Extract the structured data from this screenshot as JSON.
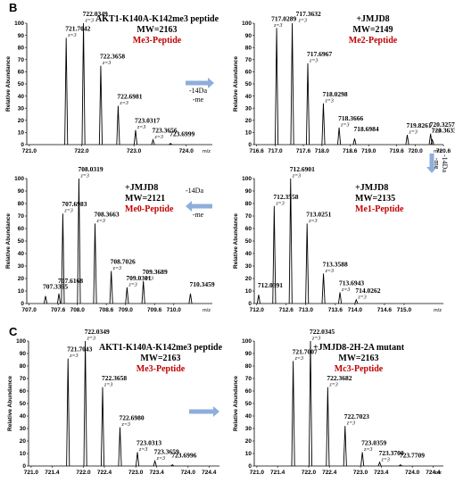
{
  "panel_letters": [
    "B",
    "C"
  ],
  "colors": {
    "arrow": "#8eaedb",
    "peptide_state": "#c00000",
    "trace": "#000000"
  },
  "arrows": [
    {
      "id": "a1",
      "direction": "right",
      "label_lines": [
        "-14Da",
        "-me"
      ]
    },
    {
      "id": "a2",
      "direction": "down",
      "label_lines": [
        "-14Da",
        "-me"
      ]
    },
    {
      "id": "a3",
      "direction": "left",
      "label_lines": [
        "-14Da",
        "-me"
      ]
    },
    {
      "id": "a4",
      "direction": "right",
      "label_lines": []
    }
  ],
  "chart_data": [
    {
      "id": "B1",
      "type": "line",
      "ylabel": "Relative Abundance",
      "xunit": "m/z",
      "xlim": [
        720.95,
        724.5
      ],
      "ylim": [
        0,
        100
      ],
      "xticks": [
        "721.0",
        "722.0",
        "723.0",
        "724.0"
      ],
      "xtick_values": [
        721.0,
        722.0,
        723.0,
        724.0
      ],
      "yticks": [
        "0",
        "10",
        "20",
        "30",
        "40",
        "50",
        "60",
        "70",
        "80",
        "90",
        "100"
      ],
      "info": [
        "AKT1-K140A-K142me3 peptide",
        "MW=2163"
      ],
      "state": "Me3-Peptide",
      "peaks": [
        {
          "x": 721.7042,
          "y": 88,
          "label": "721.7042",
          "z": "z=3"
        },
        {
          "x": 722.0349,
          "y": 100,
          "label": "722.0349",
          "z": "z=3"
        },
        {
          "x": 722.3658,
          "y": 65,
          "label": "722.3658",
          "z": "z=3"
        },
        {
          "x": 722.6981,
          "y": 32,
          "label": "722.6981",
          "z": "z=3"
        },
        {
          "x": 723.0317,
          "y": 12,
          "label": "723.0317",
          "z": "z=3"
        },
        {
          "x": 723.3656,
          "y": 4,
          "label": "723.3656",
          "z": "z=3"
        },
        {
          "x": 723.6999,
          "y": 1,
          "label": "723.6999",
          "z": ""
        }
      ]
    },
    {
      "id": "B2",
      "type": "line",
      "ylabel": "Relative Abundance",
      "xunit": "m/z",
      "xlim": [
        716.55,
        720.6
      ],
      "ylim": [
        0,
        100
      ],
      "xticks": [
        "716.6",
        "717.0",
        "717.6",
        "718.0",
        "718.6",
        "719.0",
        "719.6",
        "720.0",
        "720.6"
      ],
      "xtick_values": [
        716.6,
        717.0,
        717.6,
        718.0,
        718.6,
        719.0,
        719.6,
        720.0,
        720.6
      ],
      "yticks": [
        "0",
        "10",
        "20",
        "30",
        "40",
        "50",
        "60",
        "70",
        "80",
        "90",
        "100"
      ],
      "info": [
        "+JMJD8",
        "MW=2149"
      ],
      "state": "Me2-Peptide",
      "peaks": [
        {
          "x": 717.0289,
          "y": 96,
          "label": "717.0289",
          "z": "z=3"
        },
        {
          "x": 717.3632,
          "y": 100,
          "label": "717.3632",
          "z": "z=3"
        },
        {
          "x": 717.6967,
          "y": 67,
          "label": "717.6967",
          "z": "z=3"
        },
        {
          "x": 718.0298,
          "y": 34,
          "label": "718.0298",
          "z": "z=3"
        },
        {
          "x": 718.3666,
          "y": 14,
          "label": "718.3666",
          "z": "z=3"
        },
        {
          "x": 718.6984,
          "y": 5,
          "label": "718.6984",
          "z": ""
        },
        {
          "x": 719.8261,
          "y": 8,
          "label": "719.8261",
          "z": "z=3"
        },
        {
          "x": 720.3257,
          "y": 9,
          "label": "720.3257",
          "z": "z=3"
        },
        {
          "x": 720.3633,
          "y": 4,
          "label": "720.3633",
          "z": ""
        }
      ]
    },
    {
      "id": "B3",
      "type": "line",
      "ylabel": "Relative Abundance",
      "xunit": "m/z",
      "xlim": [
        706.95,
        710.8
      ],
      "ylim": [
        0,
        100
      ],
      "xticks": [
        "707.0",
        "707.6",
        "708.0",
        "708.6",
        "709.0",
        "709.6",
        "710.0"
      ],
      "xtick_values": [
        707.0,
        707.6,
        708.0,
        708.6,
        709.0,
        709.6,
        710.0
      ],
      "yticks": [
        "0",
        "10",
        "20",
        "30",
        "40",
        "50",
        "60",
        "70",
        "80",
        "90",
        "100"
      ],
      "info": [
        "+JMJD8",
        "MW=2121"
      ],
      "state": "Me0-Peptide",
      "peaks": [
        {
          "x": 707.3395,
          "y": 6,
          "label": "707.3395",
          "z": ""
        },
        {
          "x": 707.6168,
          "y": 8,
          "label": "707.6168",
          "z": ""
        },
        {
          "x": 707.6983,
          "y": 72,
          "label": "707.6983",
          "z": "z=3"
        },
        {
          "x": 708.0319,
          "y": 100,
          "label": "708.0319",
          "z": "z=3"
        },
        {
          "x": 708.3663,
          "y": 64,
          "label": "708.3663",
          "z": "z=3"
        },
        {
          "x": 708.7026,
          "y": 26,
          "label": "708.7026",
          "z": "z=3"
        },
        {
          "x": 709.0301,
          "y": 13,
          "label": "709.0301",
          "z": "z=3"
        },
        {
          "x": 709.3689,
          "y": 18,
          "label": "709.3689",
          "z": "z=3"
        },
        {
          "x": 710.3459,
          "y": 8,
          "label": "710.3459",
          "z": ""
        }
      ]
    },
    {
      "id": "B4",
      "type": "line",
      "ylabel": "Relative Abundance",
      "xunit": "m/z",
      "xlim": [
        711.95,
        715.8
      ],
      "ylim": [
        0,
        100
      ],
      "xticks": [
        "712.0",
        "712.6",
        "713.0",
        "713.6",
        "714.0",
        "714.6",
        "715.0"
      ],
      "xtick_values": [
        712.0,
        712.6,
        713.0,
        713.6,
        714.0,
        714.6,
        715.0
      ],
      "yticks": [
        "0",
        "10",
        "20",
        "30",
        "40",
        "50",
        "60",
        "70",
        "80",
        "90",
        "100"
      ],
      "info": [
        "+JMJD8",
        "MW=2135"
      ],
      "state": "Me1-Peptide",
      "peaks": [
        {
          "x": 712.0391,
          "y": 7,
          "label": "712.0391",
          "z": ""
        },
        {
          "x": 712.3558,
          "y": 78,
          "label": "712.3558",
          "z": "z=3"
        },
        {
          "x": 712.6901,
          "y": 100,
          "label": "712.6901",
          "z": "z=3"
        },
        {
          "x": 713.0251,
          "y": 64,
          "label": "713.0251",
          "z": "z=3"
        },
        {
          "x": 713.3588,
          "y": 24,
          "label": "713.3588",
          "z": "z=3"
        },
        {
          "x": 713.6943,
          "y": 9,
          "label": "713.6943",
          "z": "z=3"
        },
        {
          "x": 714.0262,
          "y": 3,
          "label": "714.0262",
          "z": "z=3"
        }
      ]
    },
    {
      "id": "C1",
      "type": "line",
      "ylabel": "Relative Abundance",
      "xunit": "",
      "xlim": [
        720.95,
        724.6
      ],
      "ylim": [
        0,
        100
      ],
      "xticks": [
        "721.0",
        "721.4",
        "722.0",
        "722.4",
        "723.0",
        "723.4",
        "724.0",
        "724.4"
      ],
      "xtick_values": [
        721.0,
        721.4,
        722.0,
        722.4,
        723.0,
        723.4,
        724.0,
        724.4
      ],
      "yticks": [
        "0",
        "10",
        "20",
        "30",
        "40",
        "50",
        "60",
        "70",
        "80",
        "90",
        "100"
      ],
      "info": [
        "AKT1-K140A-K142me3 peptide",
        "MW=2163"
      ],
      "state": "Me3-Peptide",
      "peaks": [
        {
          "x": 721.7043,
          "y": 86,
          "label": "721.7043",
          "z": "z=3"
        },
        {
          "x": 722.0349,
          "y": 100,
          "label": "722.0349",
          "z": "z=3"
        },
        {
          "x": 722.3658,
          "y": 63,
          "label": "722.3658",
          "z": "z=3"
        },
        {
          "x": 722.698,
          "y": 31,
          "label": "722.6980",
          "z": "z=3"
        },
        {
          "x": 723.0313,
          "y": 11,
          "label": "723.0313",
          "z": "z=3"
        },
        {
          "x": 723.3659,
          "y": 4,
          "label": "723.3659",
          "z": "z=3"
        },
        {
          "x": 723.6996,
          "y": 1,
          "label": "723.6996",
          "z": ""
        }
      ]
    },
    {
      "id": "C2",
      "type": "line",
      "ylabel": "Relative Abundance",
      "xunit": "m/z",
      "xlim": [
        720.95,
        724.6
      ],
      "ylim": [
        0,
        100
      ],
      "xticks": [
        "721.0",
        "721.4",
        "722.0",
        "722.4",
        "723.0",
        "723.4",
        "724.0",
        "724.4"
      ],
      "xtick_values": [
        721.0,
        721.4,
        722.0,
        722.4,
        723.0,
        723.4,
        724.0,
        724.4
      ],
      "yticks": [
        "0",
        "10",
        "20",
        "30",
        "40",
        "50",
        "60",
        "70",
        "80",
        "90",
        "100"
      ],
      "info": [
        "+JMJD8-2H-2A mutant",
        "MW=2163"
      ],
      "state": "Mc3-Peptide",
      "peaks": [
        {
          "x": 721.7007,
          "y": 84,
          "label": "721.7007",
          "z": "z=3"
        },
        {
          "x": 722.0345,
          "y": 100,
          "label": "722.0345",
          "z": "z=3"
        },
        {
          "x": 722.3682,
          "y": 63,
          "label": "722.3682",
          "z": "z=3"
        },
        {
          "x": 722.7023,
          "y": 32,
          "label": "722.7023",
          "z": "z=3"
        },
        {
          "x": 723.0359,
          "y": 11,
          "label": "723.0359",
          "z": "z=3"
        },
        {
          "x": 723.37,
          "y": 3,
          "label": "723.3700",
          "z": "z=3"
        },
        {
          "x": 723.7709,
          "y": 1,
          "label": "723.7709",
          "z": ""
        }
      ]
    }
  ]
}
